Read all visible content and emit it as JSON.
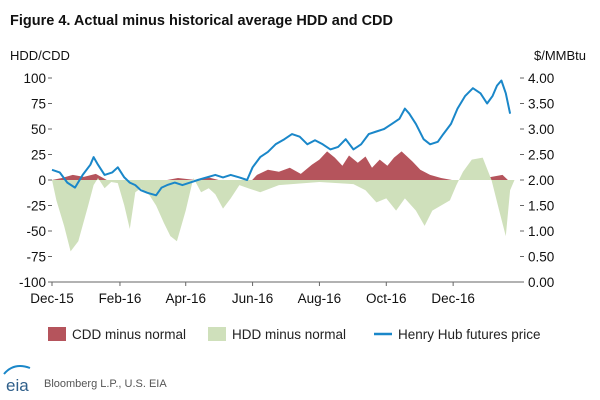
{
  "chart_data": {
    "type": "area",
    "title": "Figure 4. Actual minus historical average HDD and CDD",
    "ylabel_left": "HDD/CDD",
    "ylabel_right": "$/MMBtu",
    "ylim_left": [
      -100,
      100
    ],
    "ylim_right": [
      0.0,
      4.0
    ],
    "yticks_left": [
      "100",
      "75",
      "50",
      "25",
      "0",
      "-25",
      "-50",
      "-75",
      "-100"
    ],
    "yticks_right": [
      "4.00",
      "3.50",
      "3.00",
      "2.50",
      "2.00",
      "1.50",
      "1.00",
      "0.50",
      "0.00"
    ],
    "xlim": [
      "2015-12-01",
      "2017-01-31"
    ],
    "xticks": [
      {
        "date": "2015-12-01",
        "label": "Dec-15"
      },
      {
        "date": "2016-02-01",
        "label": "Feb-16"
      },
      {
        "date": "2016-04-01",
        "label": "Apr-16"
      },
      {
        "date": "2016-06-01",
        "label": "Jun-16"
      },
      {
        "date": "2016-08-01",
        "label": "Aug-16"
      },
      {
        "date": "2016-10-01",
        "label": "Oct-16"
      },
      {
        "date": "2016-12-01",
        "label": "Dec-16"
      }
    ],
    "grid": false,
    "legend_position": "bottom",
    "series": [
      {
        "name": "CDD minus normal",
        "axis": "left",
        "kind": "area",
        "color": "#b5545c",
        "points": [
          [
            "2015-12-01",
            0
          ],
          [
            "2015-12-10",
            2
          ],
          [
            "2015-12-20",
            5
          ],
          [
            "2015-12-30",
            3
          ],
          [
            "2016-01-10",
            6
          ],
          [
            "2016-01-20",
            0
          ],
          [
            "2016-03-15",
            0
          ],
          [
            "2016-03-25",
            2
          ],
          [
            "2016-04-10",
            0
          ],
          [
            "2016-04-20",
            3
          ],
          [
            "2016-05-01",
            0
          ],
          [
            "2016-05-20",
            -2
          ],
          [
            "2016-05-28",
            -4
          ],
          [
            "2016-06-05",
            5
          ],
          [
            "2016-06-15",
            10
          ],
          [
            "2016-06-25",
            8
          ],
          [
            "2016-07-05",
            12
          ],
          [
            "2016-07-15",
            6
          ],
          [
            "2016-07-25",
            15
          ],
          [
            "2016-08-01",
            20
          ],
          [
            "2016-08-08",
            28
          ],
          [
            "2016-08-15",
            22
          ],
          [
            "2016-08-22",
            14
          ],
          [
            "2016-08-28",
            24
          ],
          [
            "2016-09-05",
            17
          ],
          [
            "2016-09-12",
            23
          ],
          [
            "2016-09-18",
            12
          ],
          [
            "2016-09-25",
            20
          ],
          [
            "2016-10-02",
            14
          ],
          [
            "2016-10-08",
            22
          ],
          [
            "2016-10-15",
            28
          ],
          [
            "2016-10-25",
            18
          ],
          [
            "2016-11-01",
            10
          ],
          [
            "2016-11-10",
            5
          ],
          [
            "2016-11-20",
            2
          ],
          [
            "2016-11-30",
            0
          ],
          [
            "2016-12-15",
            0
          ],
          [
            "2017-01-05",
            3
          ],
          [
            "2017-01-15",
            5
          ],
          [
            "2017-01-20",
            0
          ]
        ]
      },
      {
        "name": "HDD minus normal",
        "axis": "left",
        "kind": "area",
        "color": "#cfe0bb",
        "points": [
          [
            "2015-12-01",
            0
          ],
          [
            "2015-12-05",
            -20
          ],
          [
            "2015-12-12",
            -45
          ],
          [
            "2015-12-18",
            -70
          ],
          [
            "2015-12-25",
            -60
          ],
          [
            "2016-01-03",
            -25
          ],
          [
            "2016-01-08",
            -5
          ],
          [
            "2016-01-12",
            2
          ],
          [
            "2016-01-18",
            -8
          ],
          [
            "2016-01-24",
            -2
          ],
          [
            "2016-01-30",
            -3
          ],
          [
            "2016-02-05",
            -25
          ],
          [
            "2016-02-10",
            -48
          ],
          [
            "2016-02-15",
            -12
          ],
          [
            "2016-02-20",
            -8
          ],
          [
            "2016-02-28",
            -15
          ],
          [
            "2016-03-05",
            -25
          ],
          [
            "2016-03-12",
            -42
          ],
          [
            "2016-03-18",
            -55
          ],
          [
            "2016-03-24",
            -60
          ],
          [
            "2016-04-01",
            -30
          ],
          [
            "2016-04-08",
            2
          ],
          [
            "2016-04-15",
            -12
          ],
          [
            "2016-04-22",
            -8
          ],
          [
            "2016-04-28",
            -14
          ],
          [
            "2016-05-05",
            -28
          ],
          [
            "2016-05-12",
            -18
          ],
          [
            "2016-05-20",
            -5
          ],
          [
            "2016-05-28",
            -8
          ],
          [
            "2016-06-08",
            -12
          ],
          [
            "2016-06-25",
            -5
          ],
          [
            "2016-08-01",
            -2
          ],
          [
            "2016-09-01",
            -4
          ],
          [
            "2016-09-12",
            -10
          ],
          [
            "2016-09-22",
            -22
          ],
          [
            "2016-10-01",
            -18
          ],
          [
            "2016-10-10",
            -30
          ],
          [
            "2016-10-18",
            -18
          ],
          [
            "2016-10-28",
            -30
          ],
          [
            "2016-11-05",
            -45
          ],
          [
            "2016-11-12",
            -30
          ],
          [
            "2016-11-20",
            -25
          ],
          [
            "2016-11-28",
            -20
          ],
          [
            "2016-12-04",
            -5
          ],
          [
            "2016-12-10",
            8
          ],
          [
            "2016-12-18",
            20
          ],
          [
            "2016-12-28",
            22
          ],
          [
            "2017-01-05",
            0
          ],
          [
            "2017-01-12",
            -30
          ],
          [
            "2017-01-18",
            -55
          ],
          [
            "2017-01-22",
            -10
          ],
          [
            "2017-01-26",
            0
          ]
        ]
      },
      {
        "name": "Henry Hub futures price",
        "axis": "right",
        "kind": "line",
        "color": "#1a87c9",
        "points": [
          [
            "2015-12-01",
            2.2
          ],
          [
            "2015-12-08",
            2.15
          ],
          [
            "2015-12-15",
            1.95
          ],
          [
            "2015-12-22",
            1.85
          ],
          [
            "2015-12-29",
            2.1
          ],
          [
            "2016-01-05",
            2.3
          ],
          [
            "2016-01-08",
            2.45
          ],
          [
            "2016-01-12",
            2.3
          ],
          [
            "2016-01-18",
            2.1
          ],
          [
            "2016-01-25",
            2.15
          ],
          [
            "2016-01-30",
            2.25
          ],
          [
            "2016-02-05",
            2.05
          ],
          [
            "2016-02-10",
            1.95
          ],
          [
            "2016-02-15",
            1.9
          ],
          [
            "2016-02-20",
            1.8
          ],
          [
            "2016-02-26",
            1.75
          ],
          [
            "2016-03-05",
            1.7
          ],
          [
            "2016-03-10",
            1.85
          ],
          [
            "2016-03-15",
            1.9
          ],
          [
            "2016-03-22",
            1.95
          ],
          [
            "2016-03-29",
            1.9
          ],
          [
            "2016-04-05",
            1.95
          ],
          [
            "2016-04-12",
            2.0
          ],
          [
            "2016-04-20",
            2.05
          ],
          [
            "2016-04-28",
            2.1
          ],
          [
            "2016-05-05",
            2.05
          ],
          [
            "2016-05-12",
            2.1
          ],
          [
            "2016-05-20",
            2.05
          ],
          [
            "2016-05-27",
            2.0
          ],
          [
            "2016-06-01",
            2.25
          ],
          [
            "2016-06-08",
            2.45
          ],
          [
            "2016-06-15",
            2.55
          ],
          [
            "2016-06-22",
            2.7
          ],
          [
            "2016-06-30",
            2.8
          ],
          [
            "2016-07-07",
            2.9
          ],
          [
            "2016-07-14",
            2.85
          ],
          [
            "2016-07-21",
            2.7
          ],
          [
            "2016-07-28",
            2.78
          ],
          [
            "2016-08-04",
            2.7
          ],
          [
            "2016-08-11",
            2.6
          ],
          [
            "2016-08-18",
            2.65
          ],
          [
            "2016-08-25",
            2.8
          ],
          [
            "2016-09-01",
            2.6
          ],
          [
            "2016-09-08",
            2.7
          ],
          [
            "2016-09-15",
            2.9
          ],
          [
            "2016-09-22",
            2.95
          ],
          [
            "2016-09-29",
            3.0
          ],
          [
            "2016-10-06",
            3.1
          ],
          [
            "2016-10-13",
            3.2
          ],
          [
            "2016-10-18",
            3.4
          ],
          [
            "2016-10-22",
            3.3
          ],
          [
            "2016-10-28",
            3.1
          ],
          [
            "2016-11-04",
            2.8
          ],
          [
            "2016-11-10",
            2.7
          ],
          [
            "2016-11-17",
            2.75
          ],
          [
            "2016-11-22",
            2.9
          ],
          [
            "2016-11-29",
            3.1
          ],
          [
            "2016-12-05",
            3.4
          ],
          [
            "2016-12-12",
            3.65
          ],
          [
            "2016-12-19",
            3.8
          ],
          [
            "2016-12-26",
            3.7
          ],
          [
            "2017-01-01",
            3.5
          ],
          [
            "2017-01-06",
            3.65
          ],
          [
            "2017-01-10",
            3.85
          ],
          [
            "2017-01-14",
            3.95
          ],
          [
            "2017-01-18",
            3.7
          ],
          [
            "2017-01-22",
            3.3
          ]
        ]
      }
    ]
  },
  "footer": {
    "logo_text": "eia",
    "source": "Bloomberg L.P., U.S. EIA"
  }
}
